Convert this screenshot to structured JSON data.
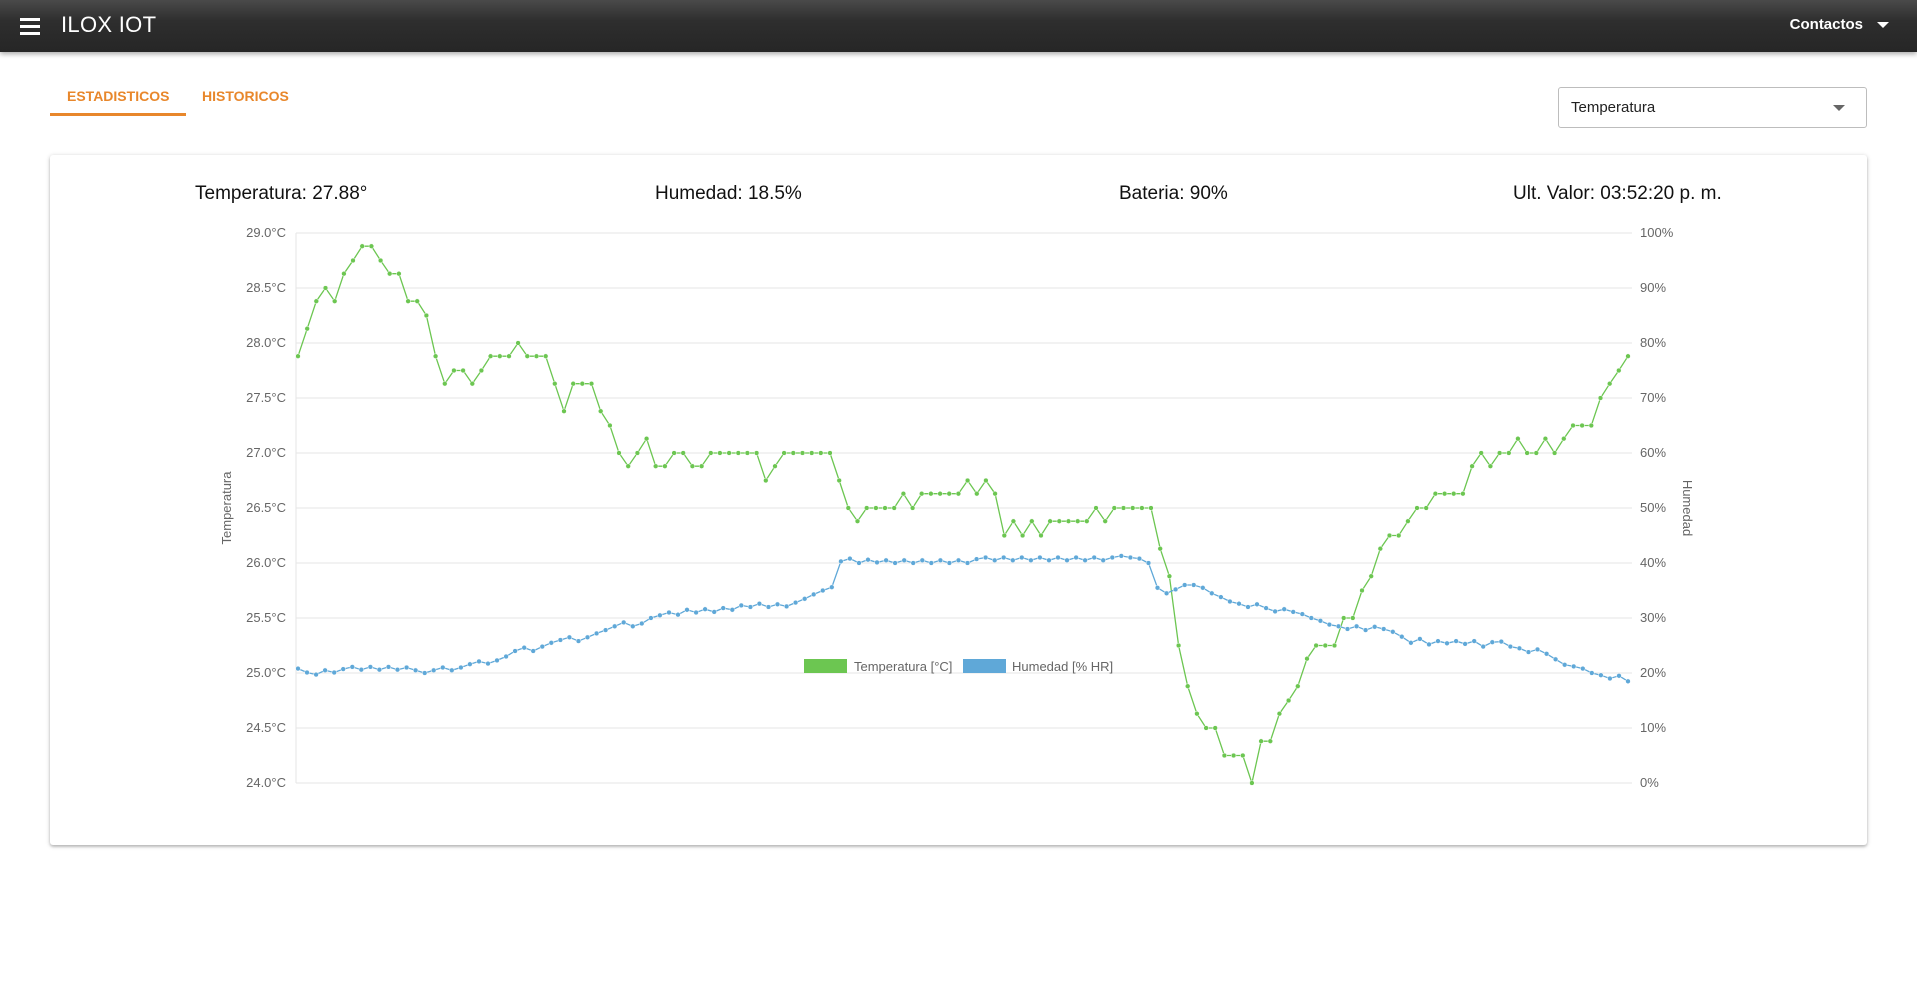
{
  "header": {
    "title": "ILOX IOT",
    "contacts_label": "Contactos"
  },
  "tabs": [
    {
      "label": "ESTADISTICOS",
      "active": true
    },
    {
      "label": "HISTORICOS",
      "active": false
    }
  ],
  "selector": {
    "value": "Temperatura"
  },
  "colors": {
    "accent": "#e8872b",
    "temperature": "#6cc651",
    "humidity": "#5fa8d8",
    "appbar": "#2e2e2e"
  },
  "stats": {
    "temperature": "Temperatura: 27.88°",
    "humidity": "Humedad: 18.5%",
    "battery": "Bateria: 90%",
    "last_value": "Ult. Valor: 03:52:20 p. m."
  },
  "chart_data": {
    "type": "line",
    "left_axis": {
      "title": "Temperatura",
      "ylim": [
        24.0,
        29.0
      ],
      "ticks": [
        "24.0°C",
        "24.5°C",
        "25.0°C",
        "25.5°C",
        "26.0°C",
        "26.5°C",
        "27.0°C",
        "27.5°C",
        "28.0°C",
        "28.5°C",
        "29.0°C"
      ]
    },
    "right_axis": {
      "title": "Humedad",
      "ylim": [
        0,
        100
      ],
      "ticks": [
        "0%",
        "10%",
        "20%",
        "30%",
        "40%",
        "50%",
        "60%",
        "70%",
        "80%",
        "90%",
        "100%"
      ]
    },
    "grid": true,
    "legend_position": "bottom",
    "series": [
      {
        "name": "Temperatura [°C]",
        "axis": "left",
        "values": [
          27.88,
          28.13,
          28.38,
          28.5,
          28.38,
          28.63,
          28.75,
          28.88,
          28.88,
          28.75,
          28.63,
          28.63,
          28.38,
          28.38,
          28.25,
          27.88,
          27.63,
          27.75,
          27.75,
          27.63,
          27.75,
          27.88,
          27.88,
          27.88,
          28.0,
          27.88,
          27.88,
          27.88,
          27.63,
          27.38,
          27.63,
          27.63,
          27.63,
          27.38,
          27.25,
          27.0,
          26.88,
          27.0,
          27.13,
          26.88,
          26.88,
          27.0,
          27.0,
          26.88,
          26.88,
          27.0,
          27.0,
          27.0,
          27.0,
          27.0,
          27.0,
          26.75,
          26.88,
          27.0,
          27.0,
          27.0,
          27.0,
          27.0,
          27.0,
          26.75,
          26.5,
          26.38,
          26.5,
          26.5,
          26.5,
          26.5,
          26.63,
          26.5,
          26.63,
          26.63,
          26.63,
          26.63,
          26.63,
          26.75,
          26.63,
          26.75,
          26.63,
          26.25,
          26.38,
          26.25,
          26.38,
          26.25,
          26.38,
          26.38,
          26.38,
          26.38,
          26.38,
          26.5,
          26.38,
          26.5,
          26.5,
          26.5,
          26.5,
          26.5,
          26.13,
          25.88,
          25.25,
          24.88,
          24.63,
          24.5,
          24.5,
          24.25,
          24.25,
          24.25,
          24.0,
          24.38,
          24.38,
          24.63,
          24.75,
          24.88,
          25.13,
          25.25,
          25.25,
          25.25,
          25.5,
          25.5,
          25.75,
          25.88,
          26.13,
          26.25,
          26.25,
          26.38,
          26.5,
          26.5,
          26.63,
          26.63,
          26.63,
          26.63,
          26.88,
          27.0,
          26.88,
          27.0,
          27.0,
          27.13,
          27.0,
          27.0,
          27.13,
          27.0,
          27.13,
          27.25,
          27.25,
          27.25,
          27.5,
          27.63,
          27.75,
          27.88
        ]
      },
      {
        "name": "Humedad [% HR]",
        "axis": "right",
        "values": [
          20.8,
          20.1,
          19.7,
          20.5,
          20.1,
          20.7,
          21.1,
          20.6,
          21.1,
          20.6,
          21.1,
          20.6,
          21.0,
          20.5,
          20.0,
          20.5,
          21.0,
          20.5,
          21.0,
          21.6,
          22.1,
          21.7,
          22.3,
          23.0,
          24.0,
          24.6,
          24.0,
          24.8,
          25.5,
          26.0,
          26.5,
          25.8,
          26.5,
          27.2,
          27.8,
          28.5,
          29.2,
          28.5,
          29.0,
          30.0,
          30.5,
          31.0,
          30.6,
          31.5,
          31.0,
          31.6,
          31.1,
          31.8,
          31.5,
          32.3,
          32.0,
          32.6,
          32.0,
          32.5,
          32.1,
          32.8,
          33.5,
          34.3,
          35.0,
          35.6,
          40.3,
          40.8,
          40.0,
          40.6,
          40.1,
          40.5,
          40.0,
          40.5,
          40.0,
          40.5,
          40.0,
          40.5,
          40.0,
          40.5,
          40.0,
          40.7,
          41.0,
          40.5,
          41.0,
          40.5,
          41.0,
          40.5,
          41.0,
          40.5,
          41.0,
          40.5,
          41.0,
          40.5,
          41.0,
          40.5,
          41.0,
          41.3,
          41.0,
          40.8,
          40.0,
          35.5,
          34.5,
          35.2,
          36.0,
          36.0,
          35.5,
          34.5,
          33.8,
          33.0,
          32.6,
          32.0,
          32.5,
          31.8,
          31.2,
          31.6,
          31.1,
          30.7,
          30.0,
          29.5,
          28.8,
          28.5,
          28.0,
          28.5,
          27.8,
          28.4,
          28.0,
          27.5,
          26.6,
          25.5,
          26.2,
          25.2,
          25.8,
          25.4,
          25.8,
          25.3,
          25.8,
          24.8,
          25.6,
          25.7,
          24.8,
          24.5,
          23.8,
          24.3,
          23.5,
          22.5,
          21.5,
          21.2,
          20.8,
          20.0,
          19.6,
          19.0,
          19.5,
          18.5
        ]
      }
    ]
  }
}
